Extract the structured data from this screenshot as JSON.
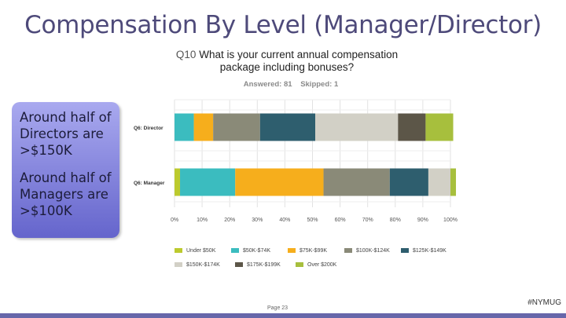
{
  "slide": {
    "title": "Compensation By Level (Manager/Director)",
    "page": "Page 23",
    "tag": "#NYMUG"
  },
  "callout": {
    "line1": "Around half of Directors are >$150K",
    "line2": "Around half of Managers are >$100K"
  },
  "question": {
    "number": "Q10",
    "text": "What is your current annual compensation package including bonuses?",
    "answered": "Answered: 81",
    "skipped": "Skipped: 1"
  },
  "chart_data": {
    "type": "bar",
    "orientation": "horizontal",
    "stacked": true,
    "categories": [
      "Q6: Director",
      "Q6: Manager"
    ],
    "xlim": [
      0,
      100
    ],
    "x_ticks": [
      "0%",
      "10%",
      "20%",
      "30%",
      "40%",
      "50%",
      "60%",
      "70%",
      "80%",
      "90%",
      "100%"
    ],
    "grid": true,
    "legend_position": "bottom",
    "series": [
      {
        "name": "Under $50K",
        "color": "#bcca2e",
        "values": [
          0,
          2
        ]
      },
      {
        "name": "$50K-$74K",
        "color": "#3bbcbf",
        "values": [
          7,
          20
        ]
      },
      {
        "name": "$75K-$99K",
        "color": "#f6ae1c",
        "values": [
          7,
          32
        ]
      },
      {
        "name": "$100K-$124K",
        "color": "#8a8a78",
        "values": [
          17,
          24
        ]
      },
      {
        "name": "$125K-$149K",
        "color": "#2e5e6e",
        "values": [
          20,
          14
        ]
      },
      {
        "name": "$150K-$174K",
        "color": "#d2d0c6",
        "values": [
          30,
          8
        ]
      },
      {
        "name": "$175K-$199K",
        "color": "#5c5648",
        "values": [
          10,
          0
        ]
      },
      {
        "name": "Over $200K",
        "color": "#a7bf3d",
        "values": [
          10,
          2
        ]
      }
    ]
  }
}
